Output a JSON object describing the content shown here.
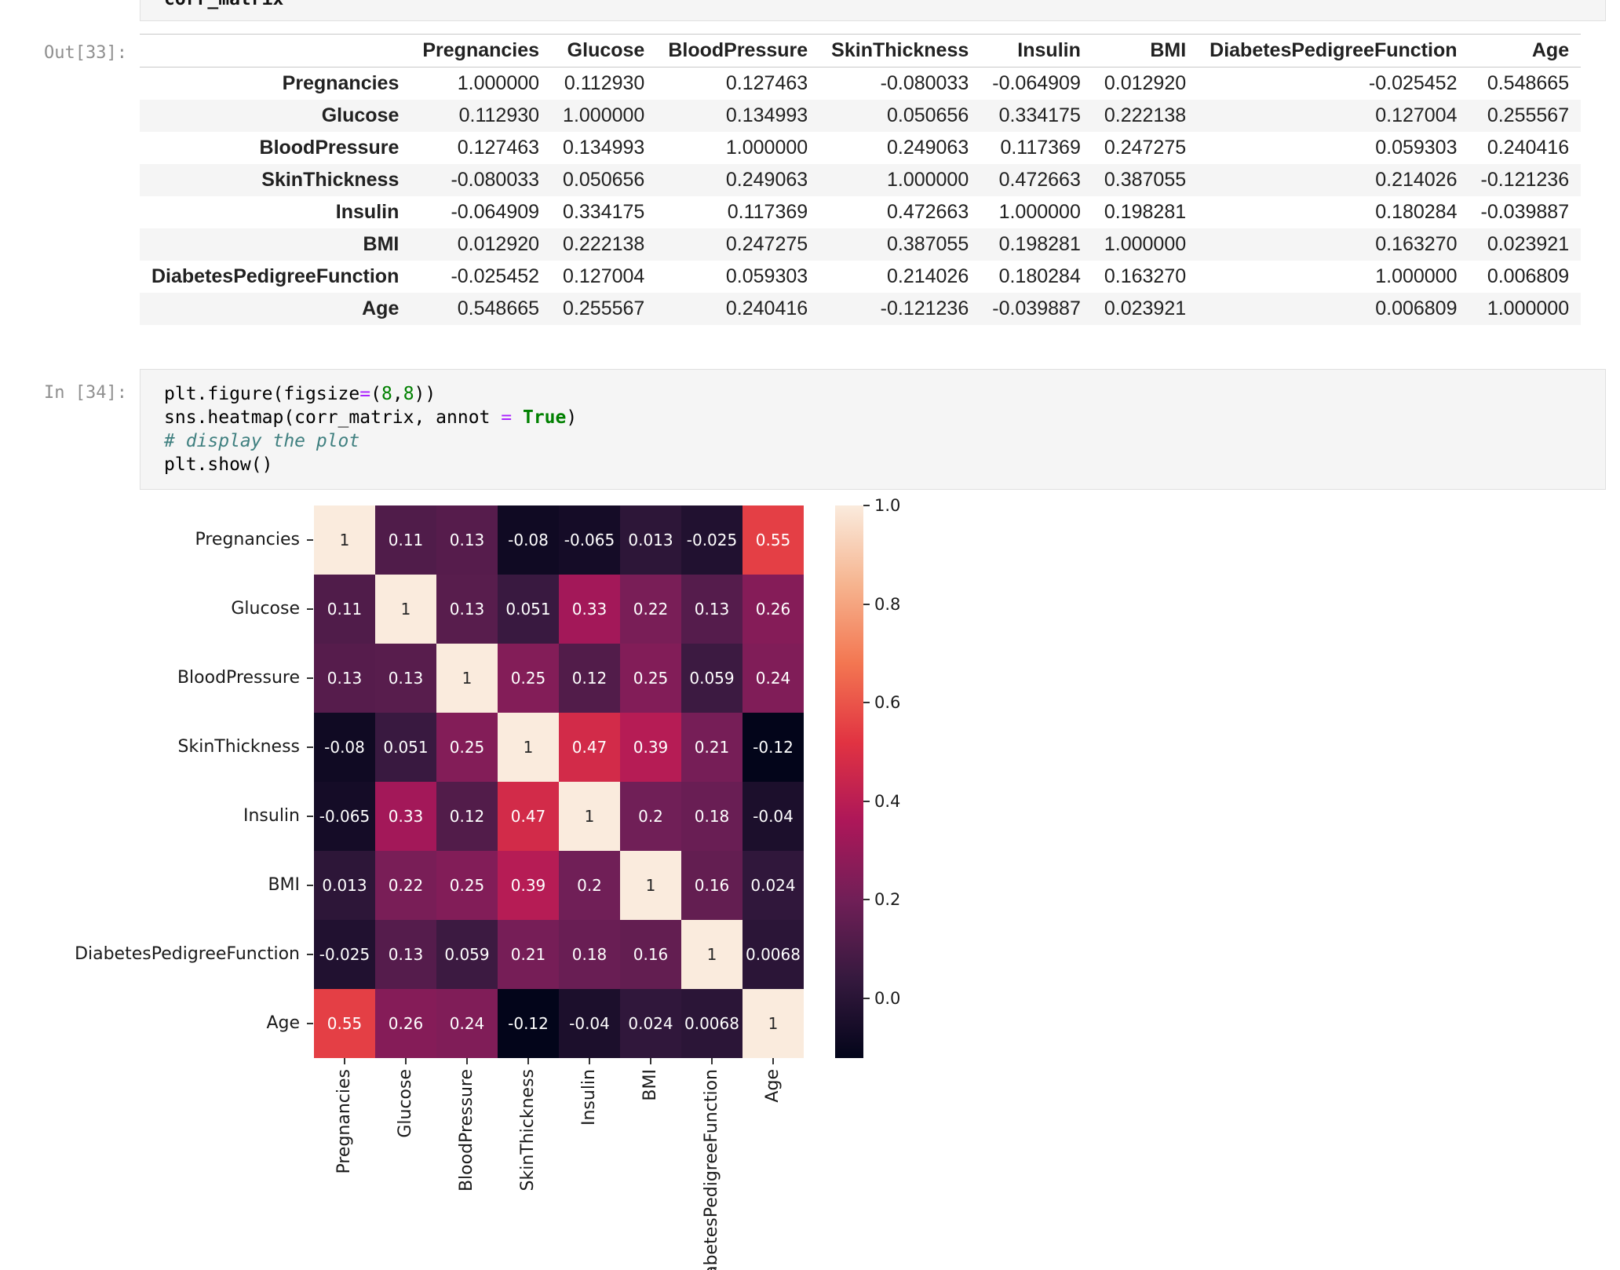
{
  "notebook": {
    "partial_top_cell": {
      "code": "corr_matrix"
    },
    "out_cell": {
      "prompt": "Out[33]:"
    },
    "in_cell": {
      "prompt": "In [34]:",
      "code_lines": [
        [
          [
            "plt.figure(figsize",
            "pl"
          ],
          [
            "=",
            "op"
          ],
          [
            "(",
            "pl"
          ],
          [
            "8",
            "nu"
          ],
          [
            ",",
            "pl"
          ],
          [
            "8",
            "nu"
          ],
          [
            "))",
            "pl"
          ]
        ],
        [
          [
            "sns.heatmap(corr_matrix, annot ",
            "pl"
          ],
          [
            "=",
            "op"
          ],
          [
            " ",
            "pl"
          ],
          [
            "True",
            "kw"
          ],
          [
            ")",
            "pl"
          ]
        ],
        [
          [
            "# display the plot",
            "co"
          ]
        ],
        [
          [
            "plt.show()",
            "pl"
          ]
        ]
      ]
    }
  },
  "table": {
    "index_header": "",
    "columns": [
      "Pregnancies",
      "Glucose",
      "BloodPressure",
      "SkinThickness",
      "Insulin",
      "BMI",
      "DiabetesPedigreeFunction",
      "Age"
    ],
    "rows": [
      {
        "label": "Pregnancies",
        "values": [
          "1.000000",
          "0.112930",
          "0.127463",
          "-0.080033",
          "-0.064909",
          "0.012920",
          "-0.025452",
          "0.548665"
        ]
      },
      {
        "label": "Glucose",
        "values": [
          "0.112930",
          "1.000000",
          "0.134993",
          "0.050656",
          "0.334175",
          "0.222138",
          "0.127004",
          "0.255567"
        ]
      },
      {
        "label": "BloodPressure",
        "values": [
          "0.127463",
          "0.134993",
          "1.000000",
          "0.249063",
          "0.117369",
          "0.247275",
          "0.059303",
          "0.240416"
        ]
      },
      {
        "label": "SkinThickness",
        "values": [
          "-0.080033",
          "0.050656",
          "0.249063",
          "1.000000",
          "0.472663",
          "0.387055",
          "0.214026",
          "-0.121236"
        ]
      },
      {
        "label": "Insulin",
        "values": [
          "-0.064909",
          "0.334175",
          "0.117369",
          "0.472663",
          "1.000000",
          "0.198281",
          "0.180284",
          "-0.039887"
        ]
      },
      {
        "label": "BMI",
        "values": [
          "0.012920",
          "0.222138",
          "0.247275",
          "0.387055",
          "0.198281",
          "1.000000",
          "0.163270",
          "0.023921"
        ]
      },
      {
        "label": "DiabetesPedigreeFunction",
        "values": [
          "-0.025452",
          "0.127004",
          "0.059303",
          "0.214026",
          "0.180284",
          "0.163270",
          "1.000000",
          "0.006809"
        ]
      },
      {
        "label": "Age",
        "values": [
          "0.548665",
          "0.255567",
          "0.240416",
          "-0.121236",
          "-0.039887",
          "0.023921",
          "0.006809",
          "1.000000"
        ]
      }
    ]
  },
  "chart_data": {
    "type": "heatmap",
    "title": "",
    "categories": [
      "Pregnancies",
      "Glucose",
      "BloodPressure",
      "SkinThickness",
      "Insulin",
      "BMI",
      "DiabetesPedigreeFunction",
      "Age"
    ],
    "matrix": [
      [
        1.0,
        0.11293,
        0.127463,
        -0.080033,
        -0.064909,
        0.01292,
        -0.025452,
        0.548665
      ],
      [
        0.11293,
        1.0,
        0.134993,
        0.050656,
        0.334175,
        0.222138,
        0.127004,
        0.255567
      ],
      [
        0.127463,
        0.134993,
        1.0,
        0.249063,
        0.117369,
        0.247275,
        0.059303,
        0.240416
      ],
      [
        -0.080033,
        0.050656,
        0.249063,
        1.0,
        0.472663,
        0.387055,
        0.214026,
        -0.121236
      ],
      [
        -0.064909,
        0.334175,
        0.117369,
        0.472663,
        1.0,
        0.198281,
        0.180284,
        -0.039887
      ],
      [
        0.01292,
        0.222138,
        0.247275,
        0.387055,
        0.198281,
        1.0,
        0.16327,
        0.023921
      ],
      [
        -0.025452,
        0.127004,
        0.059303,
        0.214026,
        0.180284,
        0.16327,
        1.0,
        0.006809
      ],
      [
        0.548665,
        0.255567,
        0.240416,
        -0.121236,
        -0.039887,
        0.023921,
        0.006809,
        1.0
      ]
    ],
    "annotations": [
      [
        "1",
        "0.11",
        "0.13",
        "-0.08",
        "-0.065",
        "0.013",
        "-0.025",
        "0.55"
      ],
      [
        "0.11",
        "1",
        "0.13",
        "0.051",
        "0.33",
        "0.22",
        "0.13",
        "0.26"
      ],
      [
        "0.13",
        "0.13",
        "1",
        "0.25",
        "0.12",
        "0.25",
        "0.059",
        "0.24"
      ],
      [
        "-0.08",
        "0.051",
        "0.25",
        "1",
        "0.47",
        "0.39",
        "0.21",
        "-0.12"
      ],
      [
        "-0.065",
        "0.33",
        "0.12",
        "0.47",
        "1",
        "0.2",
        "0.18",
        "-0.04"
      ],
      [
        "0.013",
        "0.22",
        "0.25",
        "0.39",
        "0.2",
        "1",
        "0.16",
        "0.024"
      ],
      [
        "-0.025",
        "0.13",
        "0.059",
        "0.21",
        "0.18",
        "0.16",
        "1",
        "0.0068"
      ],
      [
        "0.55",
        "0.26",
        "0.24",
        "-0.12",
        "-0.04",
        "0.024",
        "0.0068",
        "1"
      ]
    ],
    "vmin": -0.121236,
    "vmax": 1.0,
    "colormap": "rocket",
    "colormap_stops": [
      [
        0.0,
        "#03051A"
      ],
      [
        0.143,
        "#35193E"
      ],
      [
        0.286,
        "#701F57"
      ],
      [
        0.429,
        "#AD1759"
      ],
      [
        0.571,
        "#E13342"
      ],
      [
        0.714,
        "#F37651"
      ],
      [
        0.857,
        "#F6B48F"
      ],
      [
        1.0,
        "#FAEBDD"
      ]
    ],
    "colorbar_ticks": [
      {
        "label": "1.0",
        "value": 1.0
      },
      {
        "label": "0.8",
        "value": 0.8
      },
      {
        "label": "0.6",
        "value": 0.6
      },
      {
        "label": "0.4",
        "value": 0.4
      },
      {
        "label": "0.2",
        "value": 0.2
      },
      {
        "label": "0.0",
        "value": 0.0
      }
    ],
    "legend_position": "right",
    "annot_text_dark": "#262626",
    "annot_text_light": "#ffffff"
  },
  "colors": {
    "cell_background": "#f5f5f5",
    "cell_border": "#e0e0e0",
    "prompt_text": "#8f8f8f",
    "table_stripe": "#f5f5f5",
    "operator": "#AA22FF",
    "keyword": "#008000",
    "number": "#008000",
    "comment": "#408080"
  }
}
